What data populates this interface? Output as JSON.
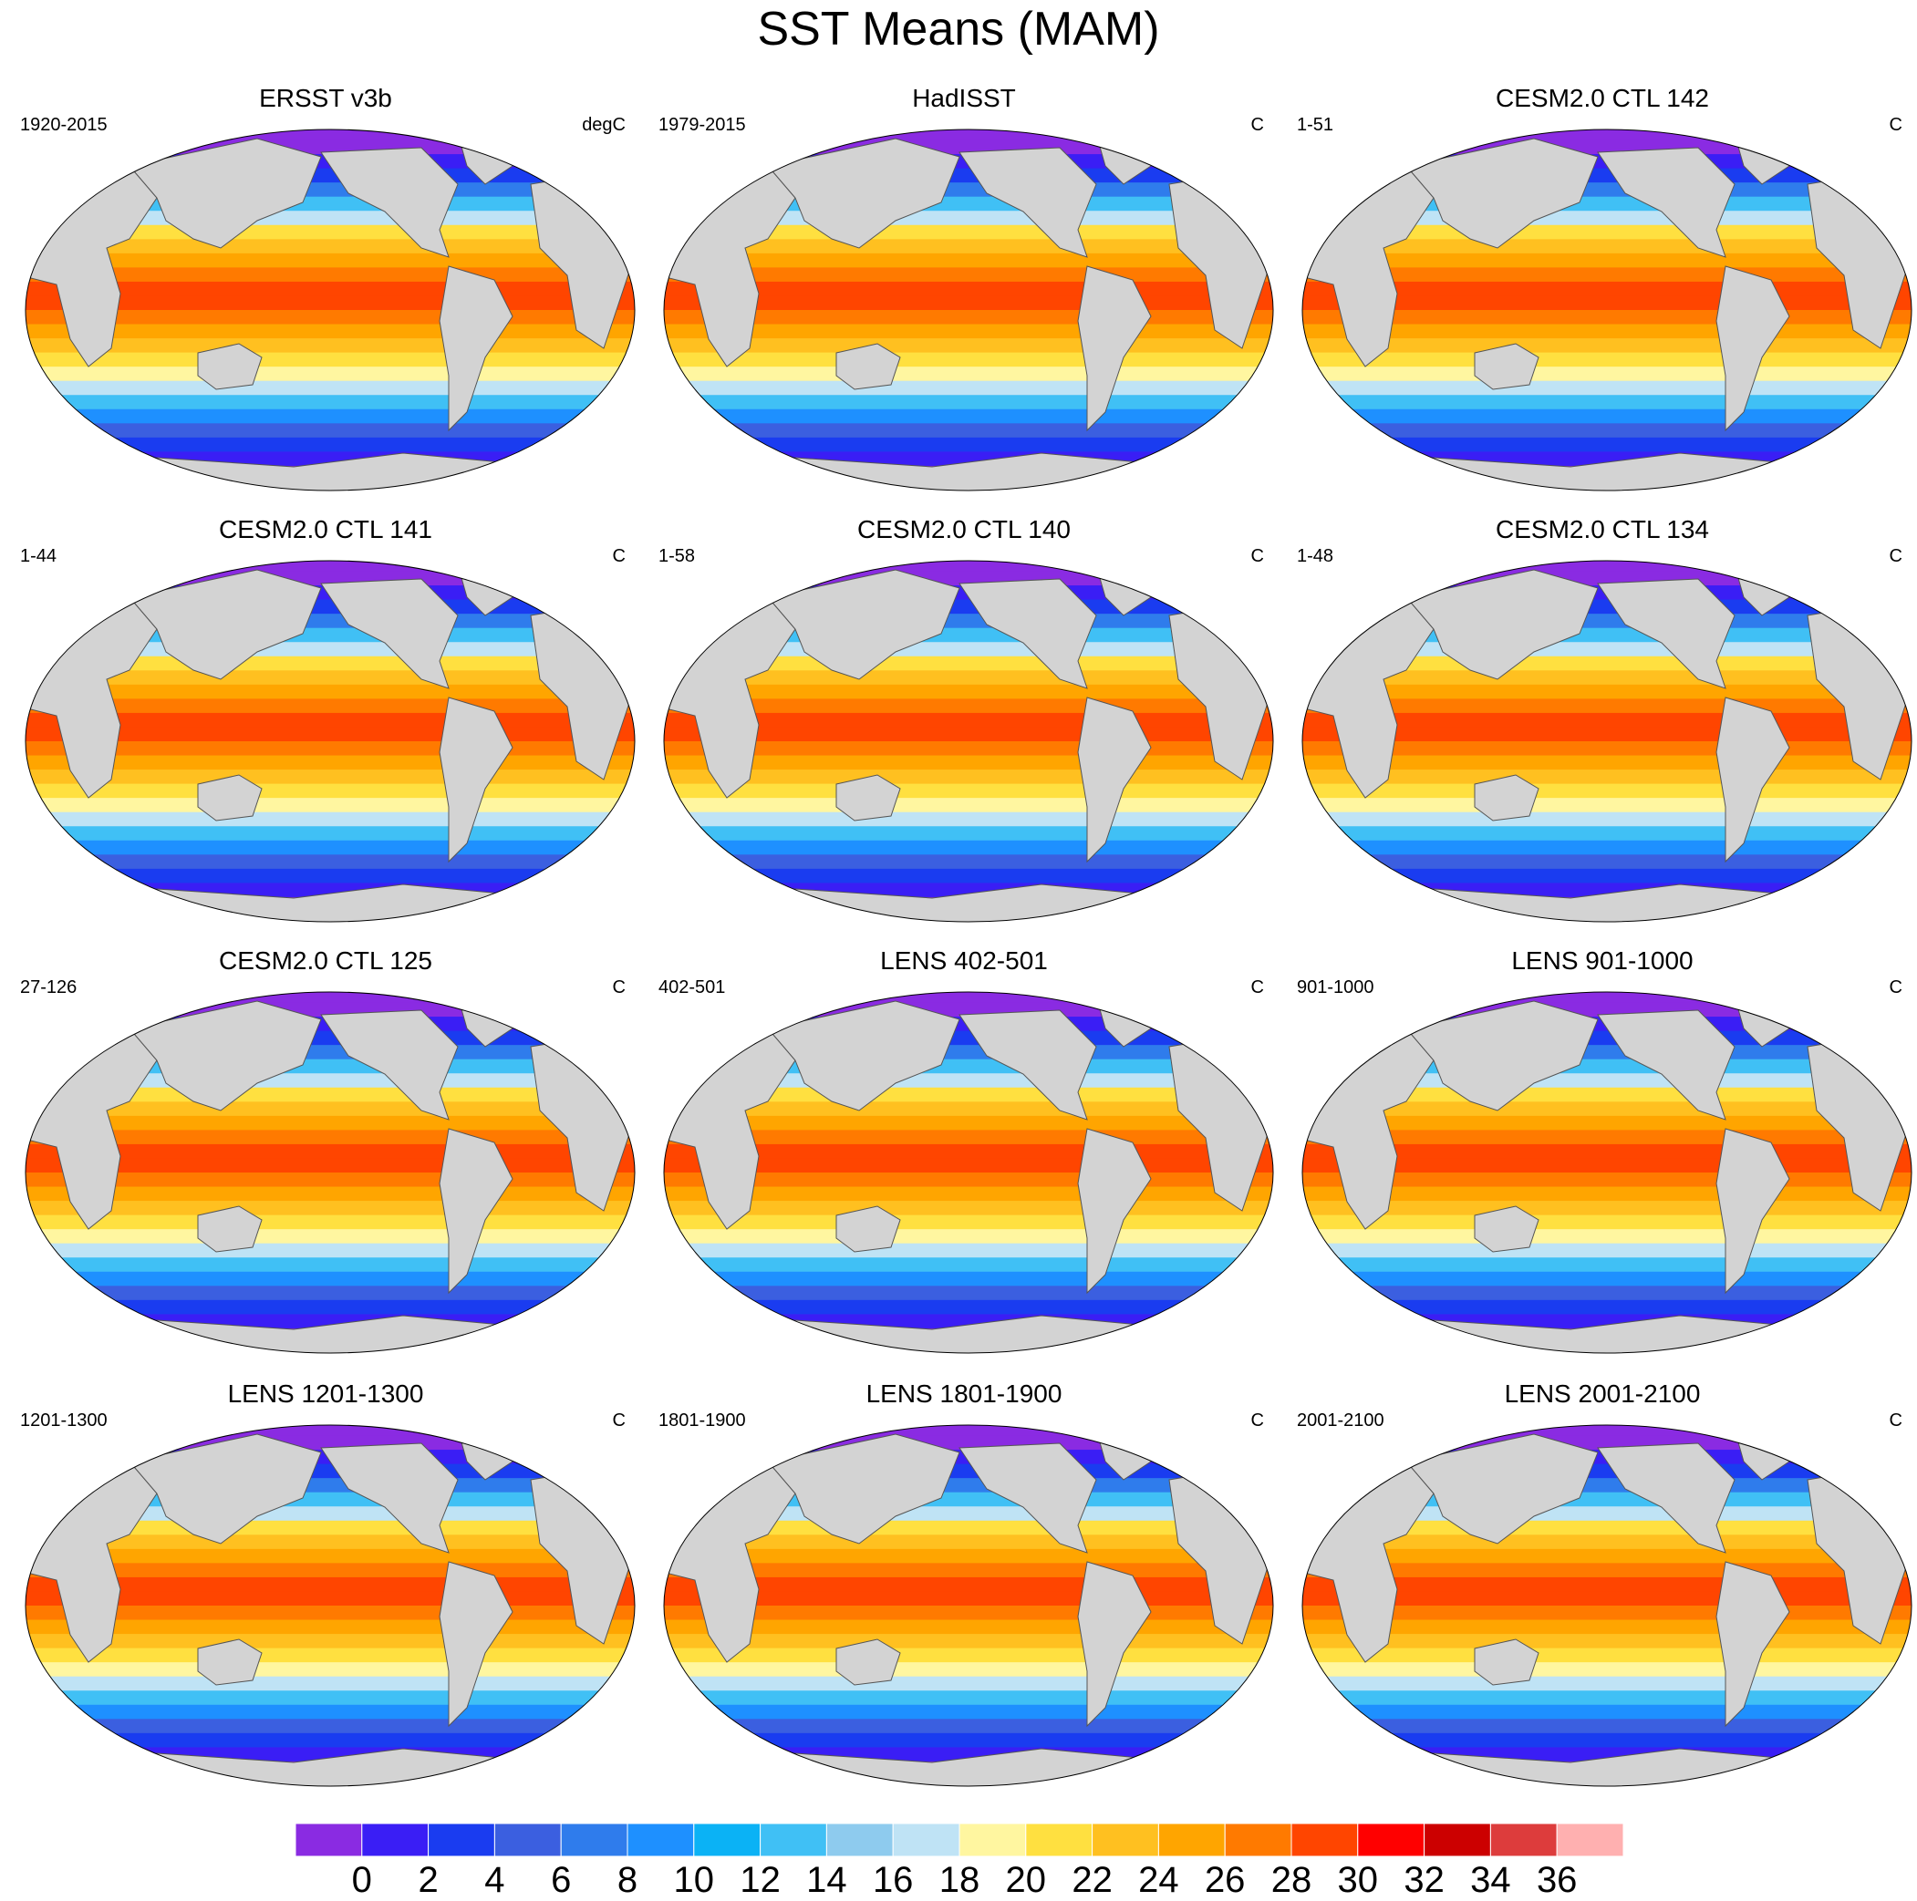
{
  "title": "SST Means (MAM)",
  "panels": [
    {
      "title": "ERSST v3b",
      "left": "1920-2015",
      "right": "degC"
    },
    {
      "title": "HadISST",
      "left": "1979-2015",
      "right": "C"
    },
    {
      "title": "CESM2.0 CTL 142",
      "left": "1-51",
      "right": "C"
    },
    {
      "title": "CESM2.0 CTL 141",
      "left": "1-44",
      "right": "C"
    },
    {
      "title": "CESM2.0 CTL 140",
      "left": "1-58",
      "right": "C"
    },
    {
      "title": "CESM2.0 CTL 134",
      "left": "1-48",
      "right": "C"
    },
    {
      "title": "CESM2.0 CTL 125",
      "left": "27-126",
      "right": "C"
    },
    {
      "title": "LENS 402-501",
      "left": "402-501",
      "right": "C"
    },
    {
      "title": "LENS 901-1000",
      "left": "901-1000",
      "right": "C"
    },
    {
      "title": "LENS 1201-1300",
      "left": "1201-1300",
      "right": "C"
    },
    {
      "title": "LENS 1801-1900",
      "left": "1801-1900",
      "right": "C"
    },
    {
      "title": "LENS 2001-2100",
      "left": "2001-2100",
      "right": "C"
    }
  ],
  "colorbar": {
    "colors": [
      "#8a2be2",
      "#3a1ef5",
      "#1a3cf0",
      "#3b5fe0",
      "#2f7cec",
      "#1e90ff",
      "#0bb2f5",
      "#40c0f5",
      "#8ecbee",
      "#bfe3f5",
      "#fff6a0",
      "#ffe040",
      "#ffc020",
      "#ffa500",
      "#ff7a00",
      "#ff4500",
      "#ff0000",
      "#cc0000",
      "#dd3c3c",
      "#ffb0b0"
    ],
    "labels": [
      "0",
      "2",
      "4",
      "6",
      "8",
      "10",
      "12",
      "14",
      "16",
      "18",
      "20",
      "22",
      "24",
      "26",
      "28",
      "30",
      "32",
      "34",
      "36"
    ]
  }
}
